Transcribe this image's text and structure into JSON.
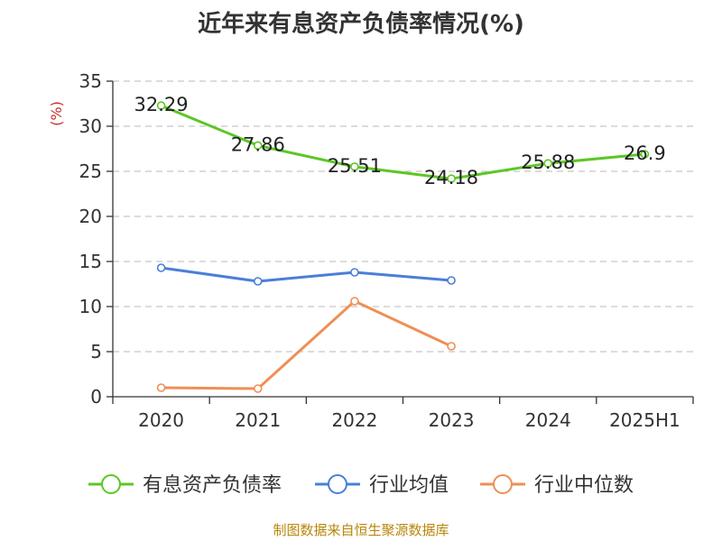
{
  "colors": {
    "grid": "#c8c8c8",
    "axis": "#333333",
    "ylabel": "#cc2b2b",
    "source": "#b8860b"
  },
  "chart_data": {
    "type": "line",
    "title": "近年来有息资产负债率情况(%)",
    "ylabel": "(%)",
    "xlabel": "",
    "categories": [
      "2020",
      "2021",
      "2022",
      "2023",
      "2024",
      "2025H1"
    ],
    "ylim": [
      0,
      35
    ],
    "yticks": [
      0,
      5,
      10,
      15,
      20,
      25,
      30,
      35
    ],
    "grid": true,
    "legend_position": "bottom",
    "series": [
      {
        "name": "有息资产负债率",
        "color": "#5cc726",
        "values": [
          32.29,
          27.86,
          25.51,
          24.18,
          25.88,
          26.9
        ],
        "labels": [
          "32.29",
          "27.86",
          "25.51",
          "24.18",
          "25.88",
          "26.9"
        ]
      },
      {
        "name": "行业均值",
        "color": "#4a7fd8",
        "values": [
          14.3,
          12.8,
          13.8,
          12.9,
          null,
          null
        ],
        "labels": []
      },
      {
        "name": "行业中位数",
        "color": "#f08e56",
        "values": [
          1.0,
          0.9,
          10.6,
          5.6,
          null,
          null
        ],
        "labels": []
      }
    ]
  },
  "source_note": "制图数据来自恒生聚源数据库"
}
